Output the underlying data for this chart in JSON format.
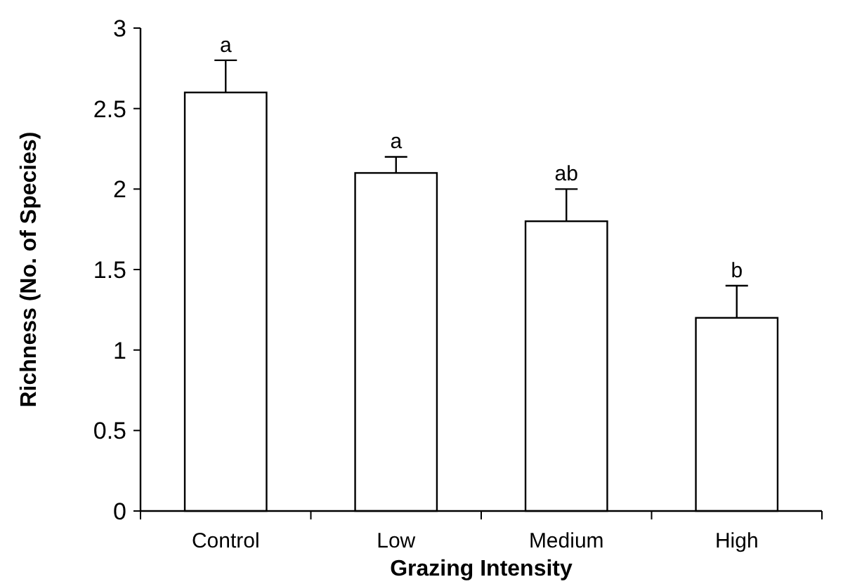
{
  "chart_data": {
    "type": "bar",
    "xlabel": "Grazing Intensity",
    "ylabel": "Richness (No. of Species)",
    "categories": [
      "Control",
      "Low",
      "Medium",
      "High"
    ],
    "values": [
      2.6,
      2.1,
      1.8,
      1.2
    ],
    "errors": [
      [
        2.6,
        2.8
      ],
      [
        2.1,
        2.2
      ],
      [
        1.8,
        2.0
      ],
      [
        1.2,
        1.4
      ]
    ],
    "color": "#ffffff",
    "ylim": [
      0,
      3
    ],
    "yticks": [
      0,
      {
        "value": 0.5,
        "label": "0.5"
      },
      1,
      {
        "value": 1.5,
        "label": "1.5"
      },
      2,
      {
        "value": 2.5,
        "label": "2.5"
      },
      3
    ],
    "grid": false,
    "annotations": [
      {
        "text": "a",
        "x": "Control",
        "y": 2.8
      },
      {
        "text": "a",
        "x": "Low",
        "y": 2.2
      },
      {
        "text": "ab",
        "x": "Medium",
        "y": 2.0
      },
      {
        "text": "b",
        "x": "High",
        "y": 1.4
      }
    ]
  }
}
